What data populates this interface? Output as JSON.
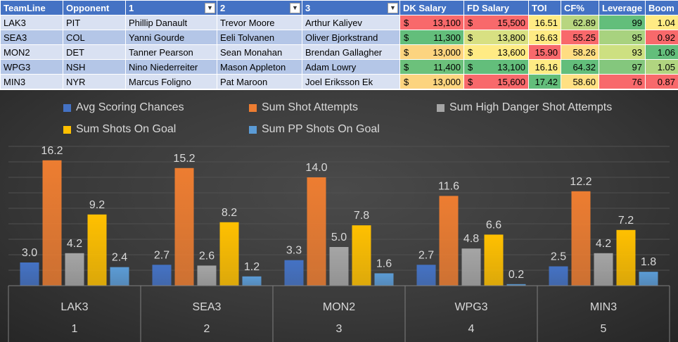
{
  "table": {
    "headers": [
      "TeamLine",
      "Opponent",
      "1",
      "2",
      "3",
      "DK Salary",
      "FD Salary",
      "TOI",
      "CF%",
      "Leverage",
      "Boom"
    ],
    "filter_cols": [
      2,
      3,
      4
    ],
    "currency": "$",
    "rows": [
      {
        "teamline": "LAK3",
        "opponent": "PIT",
        "p1": "Phillip Danault",
        "p2": "Trevor Moore",
        "p3": "Arthur Kaliyev",
        "dk": "13,100",
        "fd": "15,500",
        "toi": "16.51",
        "cf": "62.89",
        "lev": "99",
        "boom": "1.04"
      },
      {
        "teamline": "SEA3",
        "opponent": "COL",
        "p1": "Yanni Gourde",
        "p2": "Eeli Tolvanen",
        "p3": "Oliver Bjorkstrand",
        "dk": "11,300",
        "fd": "13,800",
        "toi": "16.63",
        "cf": "55.25",
        "lev": "95",
        "boom": "0.92"
      },
      {
        "teamline": "MON2",
        "opponent": "DET",
        "p1": "Tanner Pearson",
        "p2": "Sean Monahan",
        "p3": "Brendan Gallagher",
        "dk": "13,000",
        "fd": "13,600",
        "toi": "15.90",
        "cf": "58.26",
        "lev": "93",
        "boom": "1.06"
      },
      {
        "teamline": "WPG3",
        "opponent": "NSH",
        "p1": "Nino Niederreiter",
        "p2": "Mason Appleton",
        "p3": "Adam Lowry",
        "dk": "11,400",
        "fd": "13,100",
        "toi": "16.16",
        "cf": "64.32",
        "lev": "97",
        "boom": "1.05"
      },
      {
        "teamline": "MIN3",
        "opponent": "NYR",
        "p1": "Marcus Foligno",
        "p2": "Pat Maroon",
        "p3": "Joel Eriksson Ek",
        "dk": "13,000",
        "fd": "15,600",
        "toi": "17.42",
        "cf": "58.60",
        "lev": "76",
        "boom": "0.87"
      }
    ],
    "cell_colors": {
      "dk": [
        "#f8696b",
        "#63be7b",
        "#fcd47f",
        "#6cc17b",
        "#fcd47f"
      ],
      "fd": [
        "#f8696b",
        "#d8e082",
        "#ffeb84",
        "#63be7b",
        "#f8696b"
      ],
      "toi": [
        "#ffeb84",
        "#ffeb84",
        "#f8696b",
        "#ffeb84",
        "#63be7b"
      ],
      "cf": [
        "#b8d680",
        "#f8696b",
        "#ffdd82",
        "#63be7b",
        "#ffe083"
      ],
      "lev": [
        "#63be7b",
        "#a8d27f",
        "#cde081",
        "#84c77d",
        "#f8696b"
      ],
      "boom": [
        "#ffeb84",
        "#f8696b",
        "#63be7b",
        "#b1d580",
        "#f8696b"
      ]
    }
  },
  "chart_data": {
    "type": "bar",
    "categories": [
      "LAK3",
      "SEA3",
      "MON2",
      "WPG3",
      "MIN3"
    ],
    "category_index": [
      "1",
      "2",
      "3",
      "4",
      "5"
    ],
    "series": [
      {
        "name": "Avg Scoring Chances",
        "values": [
          3.0,
          2.7,
          3.3,
          2.7,
          2.5
        ],
        "color": "#4472c4",
        "labels": false
      },
      {
        "name": "Sum Shot Attempts",
        "values": [
          16.2,
          15.2,
          14.0,
          11.6,
          12.2
        ],
        "color": "#ed7d31",
        "labels": true
      },
      {
        "name": "Sum High Danger Shot Attempts",
        "values": [
          4.2,
          2.6,
          5.0,
          4.8,
          4.2
        ],
        "color": "#a5a5a5",
        "labels": true
      },
      {
        "name": "Sum Shots On Goal",
        "values": [
          9.2,
          8.2,
          7.8,
          6.6,
          7.2
        ],
        "color": "#ffc000",
        "labels": true
      },
      {
        "name": "Sum PP Shots On Goal",
        "values": [
          2.4,
          1.2,
          1.6,
          0.2,
          1.8
        ],
        "color": "#5b9bd5",
        "labels": true
      }
    ],
    "first_series_labels": [
      "3.0",
      "2.7",
      "3.3",
      "2.7",
      "2.5"
    ],
    "ylim": [
      0,
      18
    ],
    "grid": true,
    "legend_position": "top",
    "title": "",
    "xlabel": "",
    "ylabel": ""
  }
}
